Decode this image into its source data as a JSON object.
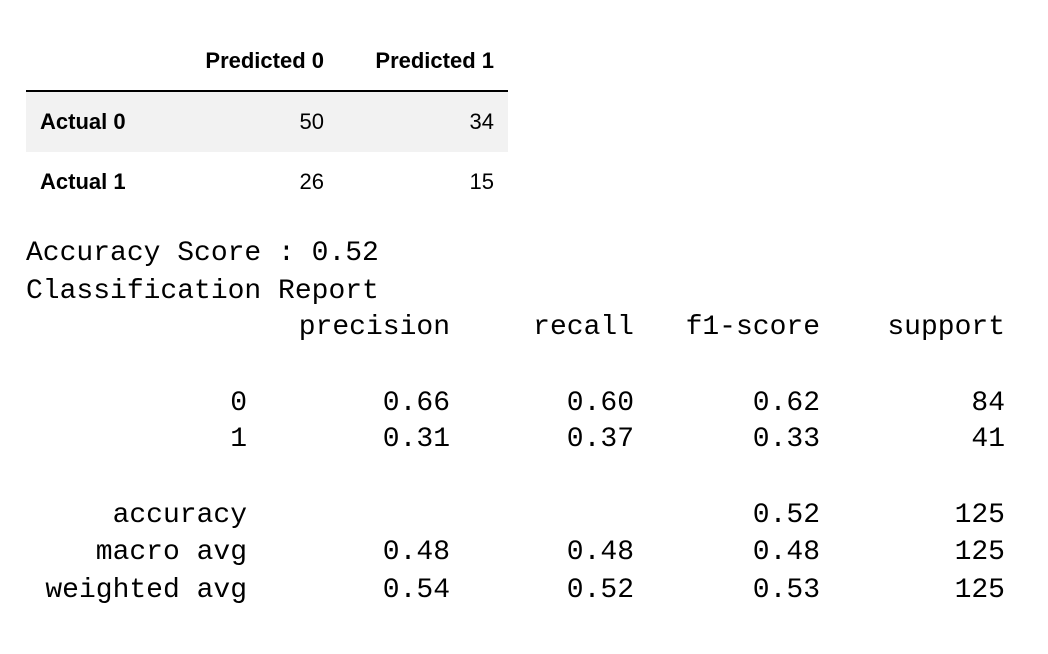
{
  "confusion_matrix": {
    "columns": [
      "Predicted 0",
      "Predicted 1"
    ],
    "rows": [
      {
        "label": "Actual 0",
        "values": [
          "50",
          "34"
        ]
      },
      {
        "label": "Actual 1",
        "values": [
          "26",
          "15"
        ]
      }
    ]
  },
  "accuracy_line": "Accuracy Score : 0.52",
  "report_title": "Classification Report",
  "report": {
    "headers": [
      "precision",
      "recall",
      "f1-score",
      "support"
    ],
    "rows": [
      {
        "label": "0",
        "precision": "0.66",
        "recall": "0.60",
        "f1": "0.62",
        "support": "84"
      },
      {
        "label": "1",
        "precision": "0.31",
        "recall": "0.37",
        "f1": "0.33",
        "support": "41"
      },
      {
        "label": "accuracy",
        "precision": "",
        "recall": "",
        "f1": "0.52",
        "support": "125"
      },
      {
        "label": "macro avg",
        "precision": "0.48",
        "recall": "0.48",
        "f1": "0.48",
        "support": "125"
      },
      {
        "label": "weighted avg",
        "precision": "0.54",
        "recall": "0.52",
        "f1": "0.53",
        "support": "125"
      }
    ]
  }
}
